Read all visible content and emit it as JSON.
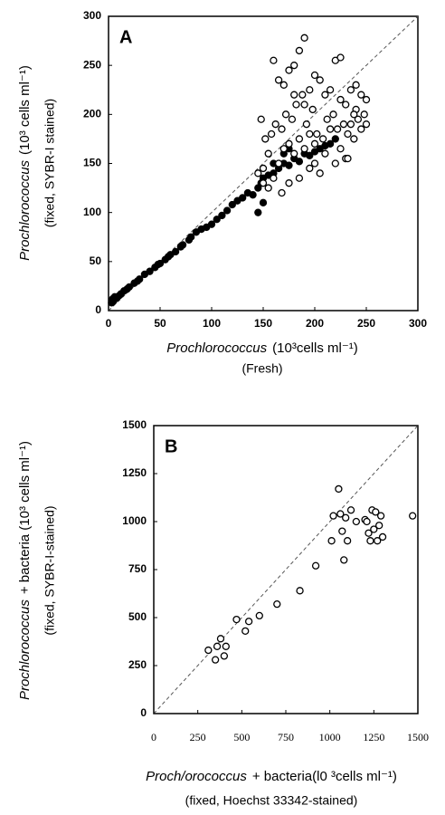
{
  "chart_data": [
    {
      "type": "scatter",
      "panel_label": "A",
      "x_label": "Prochlorococcus",
      "x_label_unit": "(10³cells ml⁻¹)",
      "x_label_2": "(Fresh)",
      "y_label": "Prochlorococcus",
      "y_label_unit": "(10³ cells ml⁻¹)",
      "y_label_2": "(fixed, SYBR-I stained)",
      "xlim": [
        0,
        300
      ],
      "ylim": [
        0,
        300
      ],
      "xticks": [
        0,
        50,
        100,
        150,
        200,
        250,
        300
      ],
      "yticks": [
        0,
        50,
        100,
        150,
        200,
        250,
        300
      ],
      "diagonal": true,
      "grid": false,
      "series": [
        {
          "color": "#000000",
          "marker": "filled",
          "x": [
            3,
            4,
            5,
            6,
            8,
            10,
            12,
            15,
            18,
            20,
            25,
            28,
            30,
            35,
            40,
            45,
            48,
            50,
            55,
            58,
            60,
            65,
            70,
            72,
            78,
            80,
            85,
            90,
            95,
            100,
            105,
            110,
            115,
            120,
            125,
            130,
            135,
            140,
            145,
            148,
            150,
            155,
            160,
            165,
            170,
            175,
            180,
            185,
            190,
            195,
            200,
            205,
            210,
            215,
            220,
            160,
            170,
            150,
            145,
            175
          ],
          "values": [
            8,
            12,
            10,
            14,
            13,
            15,
            17,
            20,
            22,
            24,
            28,
            30,
            32,
            37,
            40,
            44,
            47,
            48,
            52,
            55,
            57,
            60,
            65,
            67,
            72,
            75,
            80,
            83,
            85,
            88,
            93,
            97,
            102,
            108,
            112,
            115,
            120,
            118,
            125,
            130,
            135,
            138,
            140,
            145,
            150,
            148,
            155,
            152,
            160,
            158,
            162,
            165,
            168,
            170,
            175,
            150,
            160,
            110,
            100,
            165
          ]
        },
        {
          "color": "#000000",
          "marker": "open",
          "x": [
            145,
            150,
            155,
            160,
            165,
            170,
            175,
            180,
            185,
            190,
            195,
            200,
            205,
            210,
            220,
            225,
            230,
            235,
            240,
            245,
            250,
            148,
            152,
            158,
            162,
            168,
            172,
            178,
            182,
            188,
            192,
            198,
            202,
            208,
            212,
            218,
            222,
            228,
            232,
            238,
            242,
            248,
            150,
            155,
            160,
            165,
            170,
            175,
            180,
            185,
            190,
            195,
            200,
            210,
            215,
            220,
            225,
            230,
            235,
            240,
            245,
            250,
            185,
            195,
            200,
            205,
            168,
            175,
            180,
            190,
            215,
            225,
            232,
            238
          ],
          "values": [
            140,
            145,
            160,
            255,
            235,
            230,
            245,
            250,
            265,
            278,
            225,
            240,
            235,
            220,
            255,
            258,
            210,
            225,
            230,
            220,
            215,
            195,
            175,
            180,
            190,
            185,
            200,
            195,
            210,
            220,
            190,
            205,
            180,
            175,
            195,
            200,
            185,
            190,
            180,
            175,
            195,
            200,
            130,
            125,
            135,
            150,
            165,
            170,
            160,
            175,
            165,
            180,
            170,
            160,
            185,
            150,
            165,
            155,
            190,
            205,
            185,
            190,
            135,
            145,
            150,
            140,
            120,
            130,
            220,
            210,
            225,
            215,
            155,
            200
          ]
        }
      ]
    },
    {
      "type": "scatter",
      "panel_label": "B",
      "x_label": "Proch/orococcus",
      "x_label_unit": "+ bacteria(l0 ³cells ml⁻¹)",
      "x_label_2": "(fixed, Hoechst 33342-stained)",
      "y_label": "Prochlorococcus",
      "y_label_unit": "+ bacteria (10³ cells ml⁻¹)",
      "y_label_2": "(fixed, SYBR-I-stained)",
      "xlim": [
        0,
        1500
      ],
      "ylim": [
        0,
        1500
      ],
      "xticks": [
        0,
        250,
        500,
        750,
        1000,
        1250,
        1500
      ],
      "yticks": [
        0,
        250,
        500,
        750,
        1000,
        1250,
        1500
      ],
      "diagonal": true,
      "grid": false,
      "series": [
        {
          "color": "#000000",
          "marker": "open",
          "x": [
            310,
            350,
            360,
            380,
            400,
            410,
            470,
            520,
            540,
            600,
            700,
            830,
            920,
            1010,
            1020,
            1050,
            1060,
            1070,
            1080,
            1090,
            1100,
            1120,
            1150,
            1200,
            1220,
            1230,
            1240,
            1250,
            1260,
            1270,
            1280,
            1290,
            1300,
            1470,
            1210
          ],
          "values": [
            330,
            280,
            350,
            390,
            300,
            350,
            490,
            430,
            480,
            510,
            570,
            640,
            770,
            900,
            1030,
            1170,
            1040,
            950,
            800,
            1020,
            900,
            1060,
            1000,
            1010,
            940,
            900,
            1060,
            960,
            1050,
            900,
            980,
            1030,
            920,
            1030,
            1000
          ]
        }
      ]
    }
  ]
}
